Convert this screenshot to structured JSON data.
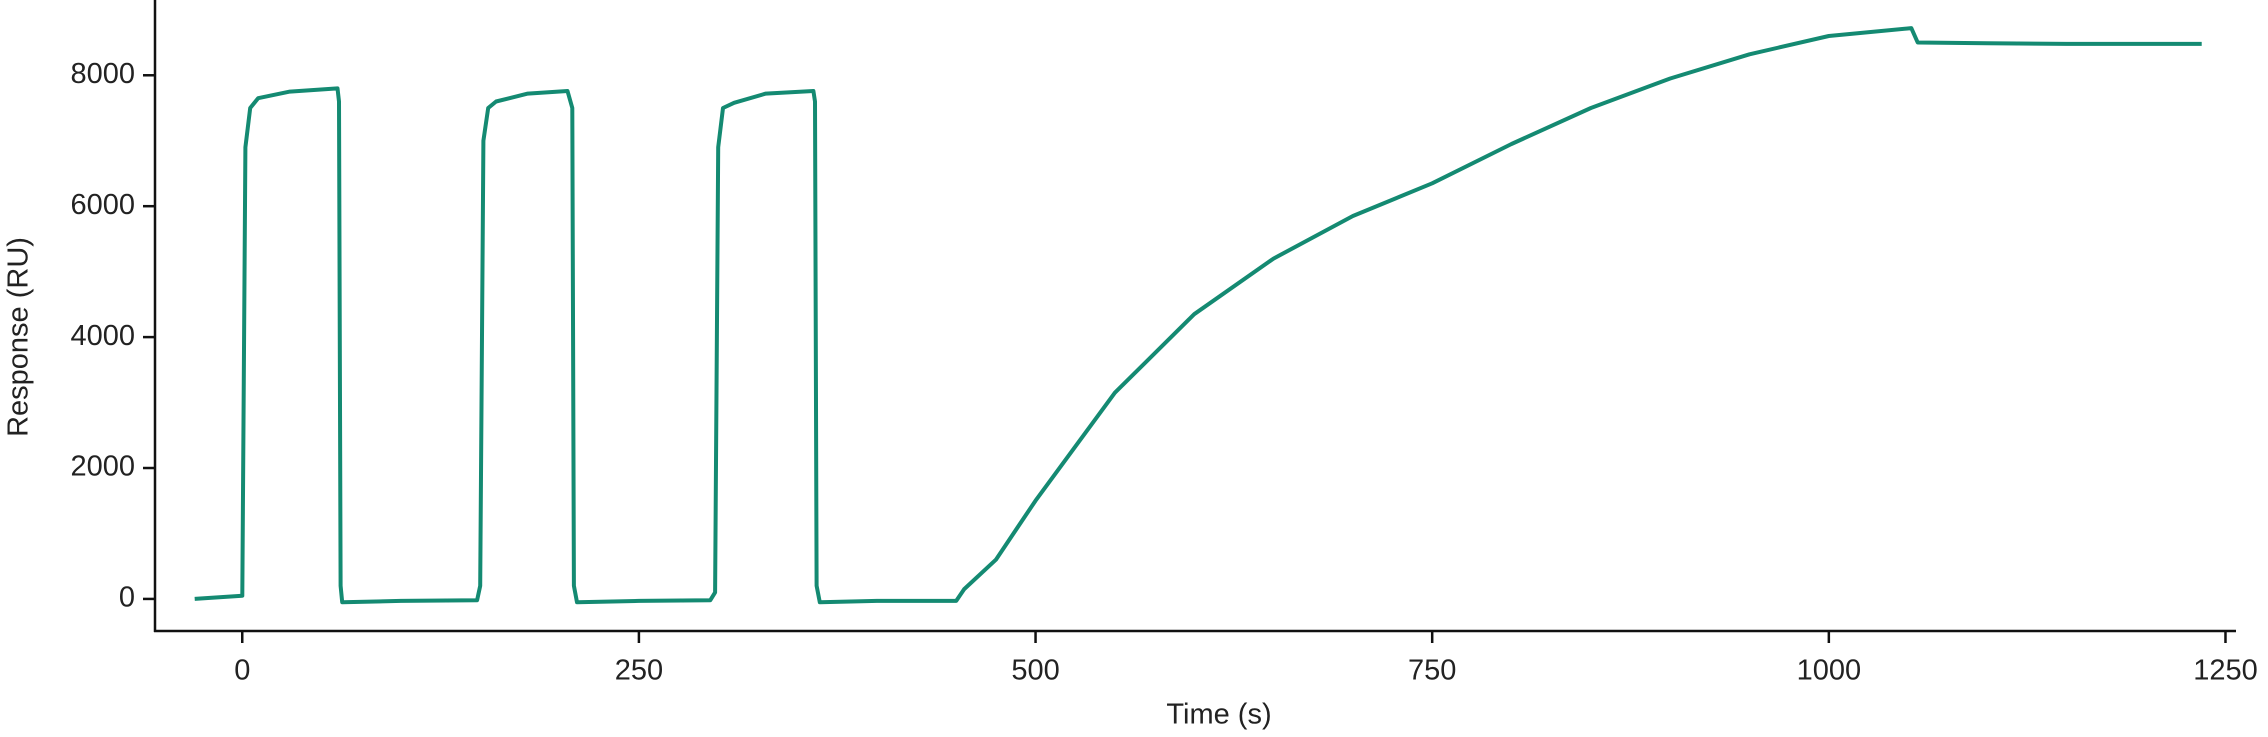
{
  "chart_data": {
    "type": "line",
    "xlabel": "Time (s)",
    "ylabel": "Response (RU)",
    "xlim": [
      -55,
      1256
    ],
    "ylim": [
      -490,
      9150
    ],
    "xticks": [
      0,
      250,
      500,
      750,
      1000,
      1250
    ],
    "yticks": [
      0,
      2000,
      4000,
      6000,
      8000
    ],
    "grid": false,
    "series": [
      {
        "color": "#148a72",
        "x": [
          -30,
          0,
          2,
          5,
          10,
          30,
          60,
          61,
          62,
          63,
          100,
          148,
          150,
          152,
          155,
          160,
          180,
          205,
          208,
          209,
          211,
          250,
          295,
          298,
          300,
          303,
          310,
          330,
          360,
          361,
          362,
          364,
          400,
          450,
          455,
          475,
          500,
          550,
          600,
          650,
          700,
          750,
          800,
          850,
          900,
          950,
          1000,
          1052,
          1056,
          1100,
          1150,
          1200,
          1235
        ],
        "values": [
          0,
          50,
          6900,
          7500,
          7650,
          7750,
          7800,
          7600,
          200,
          -50,
          -30,
          -20,
          200,
          7000,
          7500,
          7600,
          7720,
          7760,
          7500,
          200,
          -50,
          -30,
          -20,
          100,
          6900,
          7500,
          7580,
          7720,
          7760,
          7600,
          200,
          -50,
          -30,
          -30,
          150,
          600,
          1500,
          3150,
          4350,
          5200,
          5850,
          6350,
          6950,
          7500,
          7950,
          8320,
          8600,
          8720,
          8500,
          8490,
          8480,
          8480,
          8480
        ]
      }
    ]
  }
}
